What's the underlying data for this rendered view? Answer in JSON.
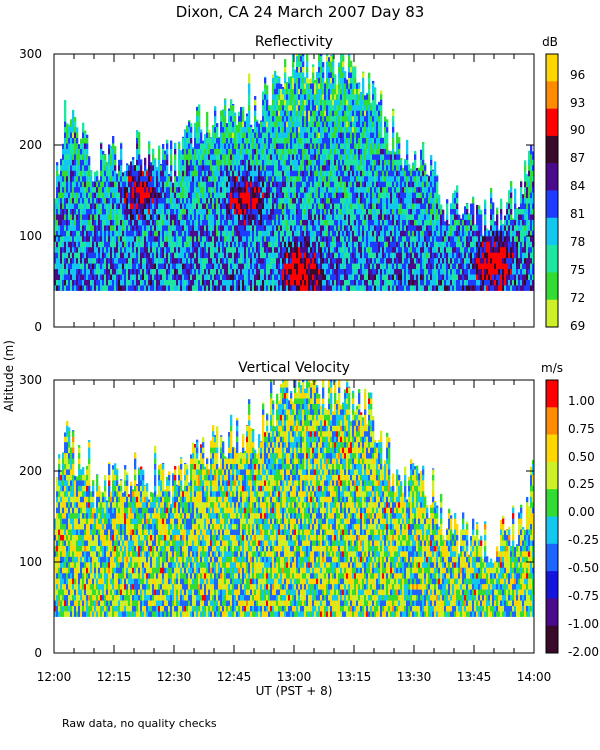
{
  "title": "Dixon, CA 24 March 2007  Day  83",
  "ylabel": "Altitude (m)",
  "xlabel": "UT  (PST + 8)",
  "footnote": "Raw data, no quality checks",
  "x_ticks": [
    "12:00",
    "12:15",
    "12:30",
    "12:45",
    "13:00",
    "13:15",
    "13:30",
    "13:45",
    "14:00"
  ],
  "y_ticks": [
    "0",
    "100",
    "200",
    "300"
  ],
  "chart_data": [
    {
      "type": "heatmap",
      "title": "Reflectivity",
      "colorbar_unit": "dB",
      "colorbar_labels": [
        "96",
        "93",
        "90",
        "87",
        "84",
        "81",
        "78",
        "75",
        "72",
        "69"
      ],
      "colorbar_colors": [
        "#ffd700",
        "#ff8c00",
        "#ff0000",
        "#3a0a2a",
        "#4b0a8c",
        "#1e3cff",
        "#12c8f0",
        "#1ee6a0",
        "#32dc32",
        "#cdf028"
      ],
      "xlim_minutes": [
        0,
        120
      ],
      "ylim": [
        0,
        300
      ],
      "echo_base_m": 40,
      "echo_top_profile_m": [
        {
          "t": 0,
          "top": 160
        },
        {
          "t": 3,
          "top": 235
        },
        {
          "t": 10,
          "top": 180
        },
        {
          "t": 20,
          "top": 200
        },
        {
          "t": 30,
          "top": 180
        },
        {
          "t": 35,
          "top": 220
        },
        {
          "t": 50,
          "top": 240
        },
        {
          "t": 55,
          "top": 265
        },
        {
          "t": 60,
          "top": 300
        },
        {
          "t": 70,
          "top": 290
        },
        {
          "t": 78,
          "top": 270
        },
        {
          "t": 85,
          "top": 200
        },
        {
          "t": 93,
          "top": 180
        },
        {
          "t": 97,
          "top": 140
        },
        {
          "t": 110,
          "top": 120
        },
        {
          "t": 118,
          "top": 150
        },
        {
          "t": 120,
          "top": 200
        }
      ],
      "hotspots": [
        {
          "t": 22,
          "alt": 145,
          "dB": 90
        },
        {
          "t": 48,
          "alt": 140,
          "dB": 90
        },
        {
          "t": 62,
          "alt": 60,
          "dB": 90
        },
        {
          "t": 110,
          "alt": 70,
          "dB": 88
        }
      ]
    },
    {
      "type": "heatmap",
      "title": "Vertical Velocity",
      "colorbar_unit": "m/s",
      "colorbar_labels": [
        "1.00",
        "0.75",
        "0.50",
        "0.25",
        "0.00",
        "-0.25",
        "-0.50",
        "-0.75",
        "-1.00",
        "-2.00"
      ],
      "colorbar_colors": [
        "#ff0000",
        "#ff8c00",
        "#ffd700",
        "#cdf028",
        "#32dc32",
        "#12c8f0",
        "#1e64ff",
        "#1414dc",
        "#4b0a8c",
        "#3a0a2a"
      ],
      "xlim_minutes": [
        0,
        120
      ],
      "ylim": [
        0,
        300
      ],
      "echo_base_m": 40,
      "echo_top_profile_m": [
        {
          "t": 0,
          "top": 160
        },
        {
          "t": 3,
          "top": 235
        },
        {
          "t": 10,
          "top": 180
        },
        {
          "t": 20,
          "top": 200
        },
        {
          "t": 30,
          "top": 180
        },
        {
          "t": 35,
          "top": 220
        },
        {
          "t": 50,
          "top": 240
        },
        {
          "t": 55,
          "top": 265
        },
        {
          "t": 60,
          "top": 300
        },
        {
          "t": 70,
          "top": 290
        },
        {
          "t": 78,
          "top": 270
        },
        {
          "t": 85,
          "top": 200
        },
        {
          "t": 93,
          "top": 180
        },
        {
          "t": 97,
          "top": 140
        },
        {
          "t": 110,
          "top": 120
        },
        {
          "t": 118,
          "top": 150
        },
        {
          "t": 120,
          "top": 200
        }
      ],
      "typical_range_ms": [
        -1.0,
        1.0
      ]
    }
  ]
}
